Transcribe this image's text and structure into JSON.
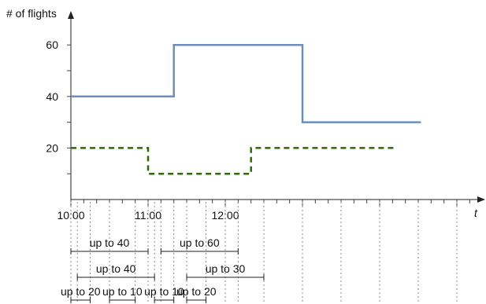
{
  "chart_data": {
    "type": "line",
    "ylabel": "# of flights",
    "xlabel": "t",
    "y_ticks": [
      20,
      40,
      60
    ],
    "x_ticks": [
      "10:00",
      "11:00",
      "12:00"
    ],
    "x_range_minutes": [
      0,
      160
    ],
    "y_range": [
      0,
      70
    ],
    "grid": false,
    "series": [
      {
        "style": "solid",
        "color": "#6c8ebf",
        "points": [
          [
            0,
            40
          ],
          [
            80,
            40
          ],
          [
            80,
            60
          ],
          [
            180,
            60
          ],
          [
            180,
            30
          ],
          [
            272,
            30
          ]
        ]
      },
      {
        "style": "dashed",
        "color": "#2d6a0a",
        "points": [
          [
            0,
            20
          ],
          [
            60,
            20
          ],
          [
            60,
            10
          ],
          [
            140,
            10
          ],
          [
            140,
            20
          ],
          [
            252,
            20
          ]
        ]
      }
    ],
    "ranges": [
      {
        "label": "up to 40",
        "start": 0,
        "end": 60,
        "row": 0
      },
      {
        "label": "up to 60",
        "start": 70,
        "end": 130,
        "row": 0
      },
      {
        "label": "up to 40",
        "start": 5,
        "end": 65,
        "row": 1
      },
      {
        "label": "up to 30",
        "start": 90,
        "end": 150,
        "row": 1
      },
      {
        "label": "up to 20",
        "start": 0,
        "end": 15,
        "row": 2
      },
      {
        "label": "up to 10",
        "start": 30,
        "end": 50,
        "row": 2
      },
      {
        "label": "up to 10",
        "start": 65,
        "end": 80,
        "row": 2
      },
      {
        "label": "up to 20",
        "start": 90,
        "end": 105,
        "row": 2
      }
    ]
  }
}
